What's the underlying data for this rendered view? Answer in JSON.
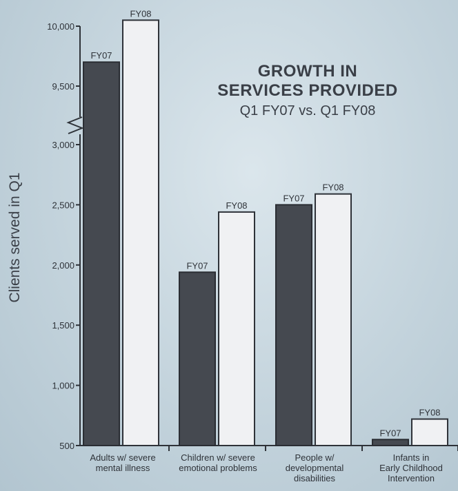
{
  "chart_data": {
    "type": "bar",
    "title_lines": [
      "GROWTH IN",
      "SERVICES PROVIDED"
    ],
    "subtitle": "Q1 FY07 vs. Q1 FY08",
    "xlabel": "",
    "ylabel": "Clients served in Q1",
    "y_axis": {
      "broken": true,
      "lower_segment": [
        500,
        3000
      ],
      "upper_segment": [
        9500,
        10000
      ],
      "tick_labels": [
        "500",
        "1,000",
        "1,500",
        "2,000",
        "2,500",
        "3,000",
        "9,500",
        "10,000"
      ],
      "tick_values": [
        500,
        1000,
        1500,
        2000,
        2500,
        3000,
        9500,
        10000
      ]
    },
    "categories": [
      [
        "Adults w/ severe",
        "mental illness"
      ],
      [
        "Children w/ severe",
        "emotional problems"
      ],
      [
        "People w/",
        "developmental",
        "disabilities"
      ],
      [
        "Infants in",
        "Early Childhood",
        "Intervention"
      ]
    ],
    "series": [
      {
        "name": "FY07",
        "color": "#454950",
        "values": [
          9700,
          1940,
          2500,
          550
        ]
      },
      {
        "name": "FY08",
        "color": "#f0f1f3",
        "values": [
          10050,
          2440,
          2590,
          720
        ]
      }
    ],
    "legend": "none (labels above bars)",
    "grid": false
  }
}
